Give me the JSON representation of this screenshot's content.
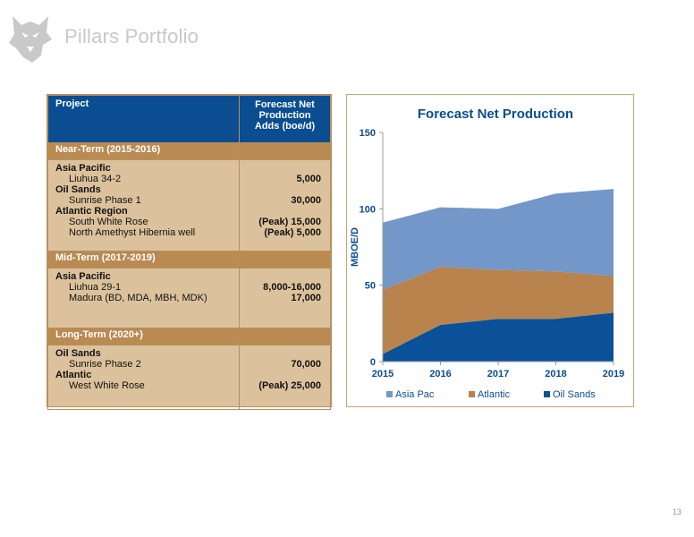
{
  "header": {
    "title": "Pillars Portfolio"
  },
  "table": {
    "col_project": "Project",
    "col_adds": [
      "Forecast Net",
      "Production",
      "Adds (boe/d)"
    ],
    "sections": [
      {
        "name": "Near-Term (2015-2016)",
        "rows": [
          {
            "kind": "group",
            "label": "Asia Pacific",
            "value": ""
          },
          {
            "kind": "item",
            "label": "Liuhua 34-2",
            "value": "5,000"
          },
          {
            "kind": "group",
            "label": "Oil Sands",
            "value": ""
          },
          {
            "kind": "item",
            "label": "Sunrise Phase 1",
            "value": "30,000"
          },
          {
            "kind": "group",
            "label": "Atlantic Region",
            "value": ""
          },
          {
            "kind": "item",
            "label": "South White Rose",
            "value": "(Peak) 15,000"
          },
          {
            "kind": "item",
            "label": "North Amethyst Hibernia well",
            "value": "(Peak) 5,000"
          }
        ]
      },
      {
        "name": "Mid-Term (2017-2019)",
        "rows": [
          {
            "kind": "group",
            "label": "Asia Pacific",
            "value": ""
          },
          {
            "kind": "item",
            "label": "Liuhua 29-1",
            "value": "8,000-16,000"
          },
          {
            "kind": "item",
            "label": "Madura (BD, MDA, MBH, MDK)",
            "value": "17,000"
          }
        ]
      },
      {
        "name": "Long-Term (2020+)",
        "rows": [
          {
            "kind": "group",
            "label": "Oil Sands",
            "value": ""
          },
          {
            "kind": "item",
            "label": "Sunrise Phase 2",
            "value": "70,000"
          },
          {
            "kind": "group",
            "label": "Atlantic",
            "value": ""
          },
          {
            "kind": "item",
            "label": "West White Rose",
            "value": "(Peak) 25,000"
          }
        ]
      }
    ]
  },
  "chart_data": {
    "type": "area",
    "title": "Forecast Net Production",
    "ylabel": "MBOE/D",
    "xlabel": "",
    "x": [
      "2015",
      "2016",
      "2017",
      "2018",
      "2019"
    ],
    "ylim": [
      0,
      150
    ],
    "yticks": [
      0,
      50,
      100,
      150
    ],
    "stacked": true,
    "grid": false,
    "legend_position": "bottom",
    "series": [
      {
        "name": "Oil Sands",
        "color": "#0a5199",
        "values": [
          5,
          24,
          28,
          28,
          32
        ]
      },
      {
        "name": "Atlantic",
        "color": "#b8834c",
        "values": [
          42,
          38,
          32,
          31,
          24
        ]
      },
      {
        "name": "Asia Pac",
        "color": "#7397c8",
        "values": [
          44,
          39,
          40,
          51,
          57
        ]
      }
    ],
    "legend_order": [
      "Asia Pac",
      "Atlantic",
      "Oil Sands"
    ]
  },
  "footer": {
    "page_number": "13"
  },
  "icons": {
    "logo": "husky-logo-icon"
  }
}
